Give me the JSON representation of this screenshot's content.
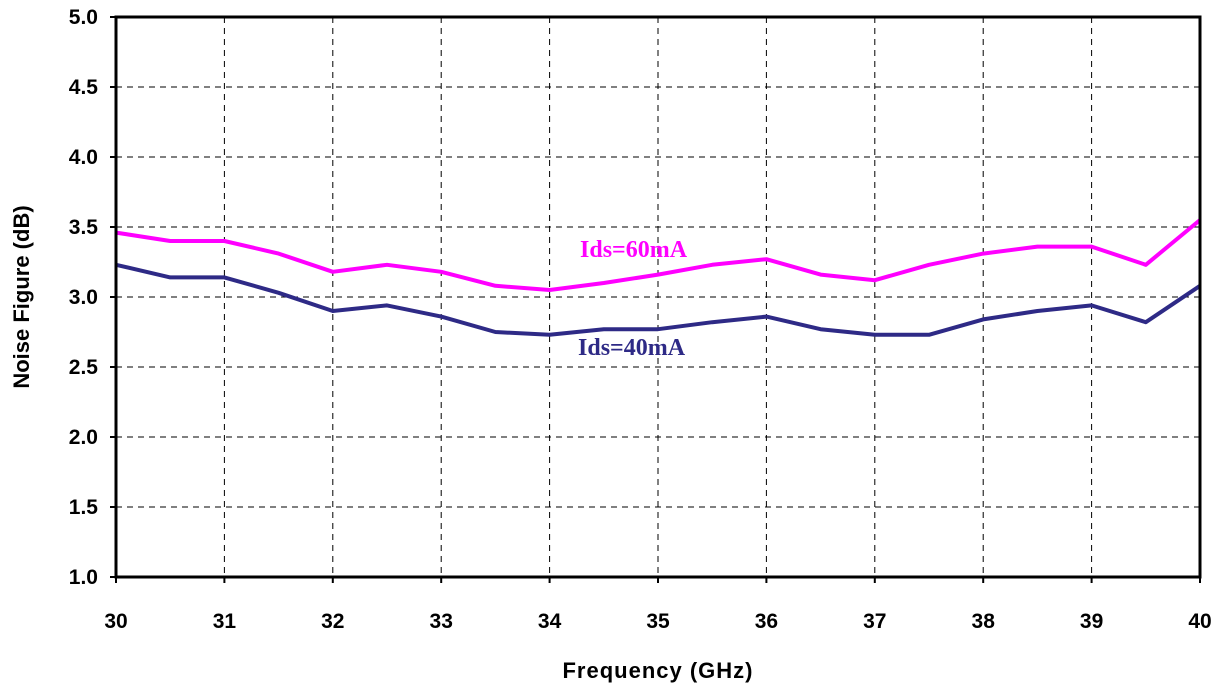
{
  "chart_data": {
    "type": "line",
    "title": "",
    "xlabel": "Frequency (GHz)",
    "ylabel": "Noise Figure (dB)",
    "xlim": [
      30,
      40
    ],
    "ylim": [
      1.0,
      5.0
    ],
    "xticks": [
      "30",
      "31",
      "32",
      "33",
      "34",
      "35",
      "36",
      "37",
      "38",
      "39",
      "40"
    ],
    "yticks": [
      "1.0",
      "1.5",
      "2.0",
      "2.5",
      "3.0",
      "3.5",
      "4.0",
      "4.5",
      "5.0"
    ],
    "grid": true,
    "x": [
      30,
      30.5,
      31,
      31.5,
      32,
      32.5,
      33,
      33.5,
      34,
      34.5,
      35,
      35.5,
      36,
      36.5,
      37,
      37.5,
      38,
      38.5,
      39,
      39.5,
      40
    ],
    "series": [
      {
        "name": "Ids=60mA",
        "color": "#ff00ff",
        "values": [
          3.46,
          3.4,
          3.4,
          3.31,
          3.18,
          3.23,
          3.18,
          3.08,
          3.05,
          3.1,
          3.16,
          3.23,
          3.27,
          3.16,
          3.12,
          3.23,
          3.31,
          3.36,
          3.36,
          3.23,
          3.55
        ]
      },
      {
        "name": "Ids=40mA",
        "color": "#2e2a86",
        "values": [
          3.23,
          3.14,
          3.14,
          3.03,
          2.9,
          2.94,
          2.86,
          2.75,
          2.73,
          2.77,
          2.77,
          2.82,
          2.86,
          2.77,
          2.73,
          2.73,
          2.84,
          2.9,
          2.94,
          2.82,
          3.08
        ]
      }
    ]
  }
}
